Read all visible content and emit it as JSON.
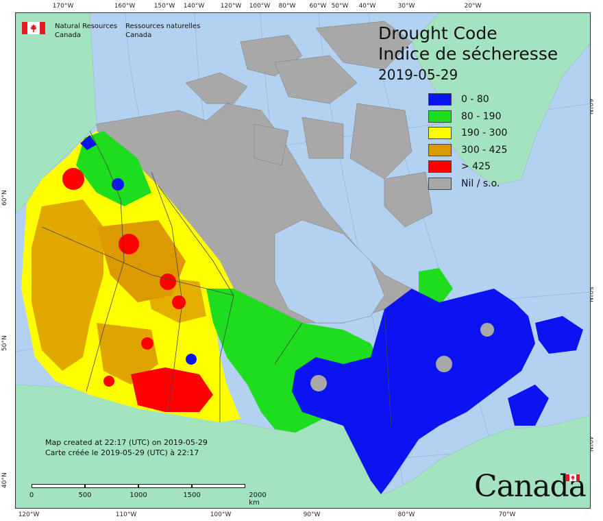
{
  "map": {
    "title_en": "Drought Code",
    "title_fr": "Indice de sécheresse",
    "date": "2019-05-29",
    "legend": [
      {
        "label": "0 - 80",
        "color": "#0a14f0"
      },
      {
        "label": "80 - 190",
        "color": "#1edc1e"
      },
      {
        "label": "190 - 300",
        "color": "#ffff00"
      },
      {
        "label": "300 - 425",
        "color": "#dc9a00"
      },
      {
        "label": "> 425",
        "color": "#ff0000"
      },
      {
        "label": "Nil / s.o.",
        "color": "#a8a8a8"
      }
    ],
    "agency": {
      "en_line1": "Natural Resources",
      "en_line2": "Canada",
      "fr_line1": "Ressources naturelles",
      "fr_line2": "Canada"
    },
    "credit": {
      "line1": "Map created at 22:17 (UTC) on 2019-05-29",
      "line2": "Carte créée le 2019-05-29 (UTC) à 22:17"
    },
    "scale_bar": {
      "labels": [
        "0",
        "500",
        "1000",
        "1500",
        "2000 km"
      ]
    },
    "wordmark": "Canada",
    "graticule": {
      "top": [
        "170°W",
        "160°W",
        "150°W",
        "140°W",
        "120°W",
        "100°W",
        "80°W",
        "60°W",
        "50°W",
        "40°W",
        "30°W",
        "20°W"
      ],
      "bottom": [
        "120°W",
        "110°W",
        "100°W",
        "90°W",
        "80°W",
        "70°W"
      ],
      "left": [
        "60°N",
        "50°N",
        "40°N"
      ],
      "right": [
        "60°N",
        "50°N",
        "40°N"
      ]
    },
    "colors": {
      "water": "#b3d1f0",
      "foreign_land": "#a3e3bf",
      "border": "#444444"
    }
  }
}
